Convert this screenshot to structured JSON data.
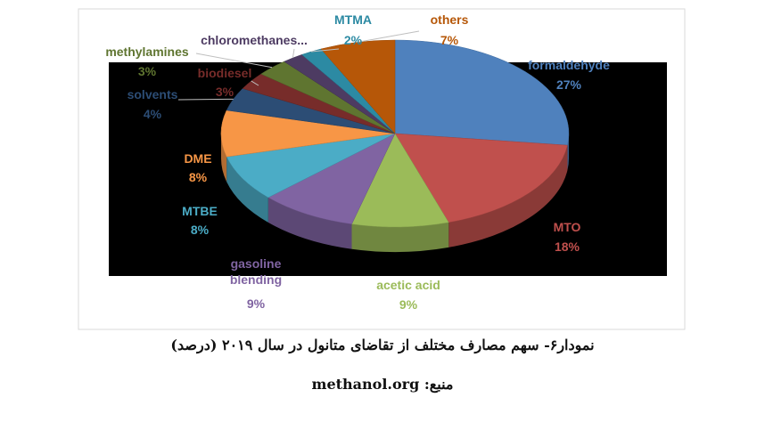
{
  "chart_data": {
    "type": "pie",
    "categories": [
      "formaldehyde",
      "MTO",
      "acetic acid",
      "gasoline blending",
      "MTBE",
      "DME",
      "solvents",
      "biodiesel",
      "methylamines",
      "chloromethanes...",
      "MTMA",
      "others"
    ],
    "values": [
      27,
      18,
      9,
      9,
      8,
      8,
      4,
      3,
      3,
      2,
      2,
      7
    ],
    "value_labels": [
      "27%",
      "18%",
      "9%",
      "9%",
      "8%",
      "8%",
      "4%",
      "3%",
      "3%",
      null,
      "2%",
      "7%"
    ],
    "colors": [
      "#4f81bd",
      "#c0504d",
      "#9bbb59",
      "#8064a2",
      "#4bacc6",
      "#f79646",
      "#2c4d75",
      "#772c2a",
      "#5f7530",
      "#4d3b62",
      "#2c8aa3",
      "#b65708"
    ]
  },
  "caption": {
    "title": "نمودار۶- سهم مصارف مختلف از تقاضای متانول در سال ۲۰۱۹ (درصد)",
    "source": "منبع: methanol.org"
  }
}
